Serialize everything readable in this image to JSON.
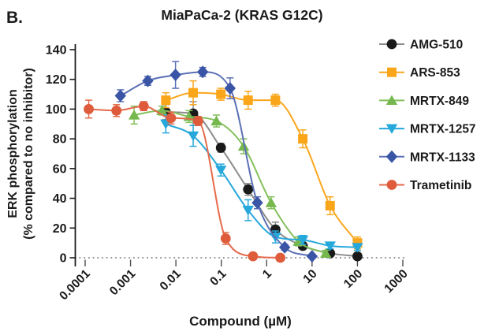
{
  "panel_label": "B.",
  "chart_data": {
    "type": "line",
    "title": "MiaPaCa-2 (KRAS G12C)",
    "xlabel": "Compound (µM)",
    "ylabel_line1": "ERK phosphorylation",
    "ylabel_line2": "(% compared to no inhibitor)",
    "x_scale": "log10",
    "xlim": [
      0.0001,
      1000
    ],
    "ylim": [
      0,
      140
    ],
    "xtick_labels": [
      "0.0001",
      "0.001",
      "0.01",
      "0.1",
      "1",
      "10",
      "100",
      "1000"
    ],
    "ytick_values": [
      0,
      20,
      40,
      60,
      80,
      100,
      120,
      140
    ],
    "zero_line": "dotted",
    "legend_position": "right",
    "axis_color": "#1a1a1a",
    "series": [
      {
        "name": "AMG-510",
        "marker": "circle",
        "color": "#1a1a1a",
        "line_color": "#8c8c8c",
        "x": [
          0.006,
          0.024,
          0.098,
          0.39,
          1.56,
          6.25,
          25,
          100
        ],
        "y": [
          98,
          97,
          74,
          46,
          19,
          8,
          3,
          1
        ],
        "err": [
          5,
          8,
          3,
          4,
          5,
          2,
          1,
          1
        ]
      },
      {
        "name": "ARS-853",
        "marker": "square",
        "color": "#FAA61B",
        "line_color": "#FAA61B",
        "x": [
          0.006,
          0.024,
          0.098,
          0.39,
          1.56,
          6.25,
          25,
          100
        ],
        "y": [
          106,
          111,
          110,
          106,
          106,
          80,
          35,
          10
        ],
        "err": [
          5,
          8,
          4,
          6,
          4,
          6,
          6,
          4
        ]
      },
      {
        "name": "MRTX-849",
        "marker": "triangle-up",
        "color": "#76B84E",
        "line_color": "#83C05C",
        "x": [
          0.0012,
          0.0049,
          0.0195,
          0.078,
          0.31,
          1.25,
          5,
          20
        ],
        "y": [
          96,
          99,
          95,
          92,
          75,
          37,
          11,
          3
        ],
        "err": [
          6,
          3,
          4,
          4,
          5,
          4,
          3,
          2
        ]
      },
      {
        "name": "MRTX-1257",
        "marker": "triangle-down",
        "color": "#26A8DB",
        "line_color": "#26A8DB",
        "x": [
          0.006,
          0.024,
          0.098,
          0.39,
          1.56,
          6.25,
          25,
          100
        ],
        "y": [
          90,
          82,
          59,
          32,
          14,
          12,
          8,
          7
        ],
        "err": [
          6,
          7,
          4,
          7,
          4,
          3,
          2,
          2
        ]
      },
      {
        "name": "MRTX-1133",
        "marker": "diamond",
        "color": "#3A55A5",
        "line_color": "#5A6FB5",
        "x": [
          0.0006,
          0.0024,
          0.0098,
          0.039,
          0.156,
          0.625,
          2.5,
          10
        ],
        "y": [
          109,
          119,
          123,
          125,
          114,
          37,
          7,
          1
        ],
        "err": [
          4,
          3,
          9,
          3,
          7,
          4,
          2,
          1
        ]
      },
      {
        "name": "Trametinib",
        "marker": "circle",
        "color": "#DE5B3C",
        "line_color": "#E56A4B",
        "x": [
          0.00012,
          0.00049,
          0.00195,
          0.0078,
          0.031,
          0.125,
          0.5,
          2
        ],
        "y": [
          100,
          99,
          102,
          94,
          92,
          13,
          1,
          0
        ],
        "err": [
          6,
          4,
          3,
          4,
          3,
          4,
          1,
          1
        ]
      }
    ]
  }
}
